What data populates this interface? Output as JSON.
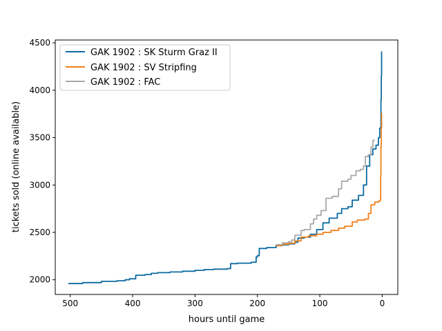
{
  "chart_data": {
    "type": "line",
    "xlabel": "hours until game",
    "ylabel": "tickets sold (online available)",
    "x_reversed": true,
    "xlim": [
      524,
      -25
    ],
    "ylim": [
      1845,
      4530
    ],
    "xticks": [
      500,
      400,
      300,
      200,
      100,
      0
    ],
    "yticks": [
      2000,
      2500,
      3000,
      3500,
      4000,
      4500
    ],
    "grid": false,
    "legend_position": "top-left",
    "series": [
      {
        "name": "GAK 1902 : SK Sturm Graz II",
        "color": "#0a6aa0",
        "points": [
          [
            503,
            1960
          ],
          [
            480,
            1970
          ],
          [
            450,
            1983
          ],
          [
            425,
            1990
          ],
          [
            412,
            2000
          ],
          [
            405,
            2010
          ],
          [
            395,
            2048
          ],
          [
            380,
            2055
          ],
          [
            370,
            2068
          ],
          [
            360,
            2075
          ],
          [
            340,
            2082
          ],
          [
            320,
            2090
          ],
          [
            300,
            2100
          ],
          [
            285,
            2108
          ],
          [
            270,
            2112
          ],
          [
            248,
            2118
          ],
          [
            243,
            2170
          ],
          [
            232,
            2175
          ],
          [
            210,
            2185
          ],
          [
            202,
            2240
          ],
          [
            200,
            2255
          ],
          [
            197,
            2330
          ],
          [
            185,
            2340
          ],
          [
            170,
            2360
          ],
          [
            160,
            2368
          ],
          [
            150,
            2378
          ],
          [
            140,
            2395
          ],
          [
            135,
            2440
          ],
          [
            125,
            2450
          ],
          [
            115,
            2480
          ],
          [
            105,
            2530
          ],
          [
            95,
            2600
          ],
          [
            85,
            2650
          ],
          [
            72,
            2700
          ],
          [
            65,
            2750
          ],
          [
            55,
            2770
          ],
          [
            48,
            2840
          ],
          [
            38,
            2890
          ],
          [
            30,
            3000
          ],
          [
            25,
            3200
          ],
          [
            20,
            3320
          ],
          [
            15,
            3380
          ],
          [
            10,
            3420
          ],
          [
            6,
            3500
          ],
          [
            4,
            3600
          ],
          [
            2,
            3900
          ],
          [
            1.5,
            4150
          ],
          [
            1,
            4410
          ]
        ]
      },
      {
        "name": "GAK 1902 : SV Stripfing",
        "color": "#f07f1a",
        "points": [
          [
            170,
            2360
          ],
          [
            160,
            2375
          ],
          [
            150,
            2385
          ],
          [
            140,
            2410
          ],
          [
            130,
            2450
          ],
          [
            118,
            2465
          ],
          [
            105,
            2480
          ],
          [
            95,
            2500
          ],
          [
            82,
            2520
          ],
          [
            70,
            2545
          ],
          [
            60,
            2565
          ],
          [
            48,
            2610
          ],
          [
            40,
            2630
          ],
          [
            28,
            2640
          ],
          [
            22,
            2700
          ],
          [
            18,
            2790
          ],
          [
            12,
            2820
          ],
          [
            6,
            2830
          ],
          [
            3,
            2850
          ],
          [
            2.5,
            3100
          ],
          [
            2,
            3400
          ],
          [
            1.5,
            3600
          ],
          [
            1,
            3760
          ]
        ]
      },
      {
        "name": "GAK 1902 : FAC",
        "color": "#a8a8a8",
        "points": [
          [
            170,
            2370
          ],
          [
            160,
            2390
          ],
          [
            150,
            2400
          ],
          [
            145,
            2420
          ],
          [
            140,
            2470
          ],
          [
            130,
            2520
          ],
          [
            125,
            2530
          ],
          [
            115,
            2590
          ],
          [
            110,
            2640
          ],
          [
            105,
            2680
          ],
          [
            98,
            2730
          ],
          [
            90,
            2860
          ],
          [
            80,
            2880
          ],
          [
            70,
            2960
          ],
          [
            65,
            3040
          ],
          [
            55,
            3060
          ],
          [
            50,
            3100
          ],
          [
            42,
            3150
          ],
          [
            35,
            3165
          ],
          [
            30,
            3200
          ],
          [
            27,
            3300
          ],
          [
            22,
            3320
          ],
          [
            18,
            3400
          ],
          [
            15,
            3470
          ],
          [
            13,
            3480
          ]
        ]
      }
    ]
  }
}
